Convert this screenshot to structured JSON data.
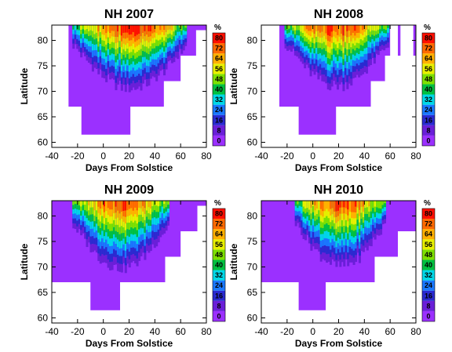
{
  "colorbar": {
    "unit": "%",
    "levels": [
      0,
      8,
      16,
      24,
      32,
      40,
      48,
      56,
      64,
      72,
      80
    ],
    "colors": [
      "#9b30ff",
      "#6a1fd8",
      "#2a2ad0",
      "#1a78ff",
      "#00d8e8",
      "#00c040",
      "#7ee000",
      "#e8f000",
      "#ffb000",
      "#ff6a00",
      "#ff1000"
    ]
  },
  "chart_data": [
    {
      "type": "heatmap",
      "title": "NH 2007",
      "xlabel": "Days From Solstice",
      "ylabel": "Latitude",
      "xlim": [
        -40,
        80
      ],
      "ylim": [
        59,
        83
      ],
      "xticks": [
        -40,
        -20,
        0,
        20,
        40,
        60,
        80
      ],
      "yticks": [
        60,
        65,
        70,
        75,
        80
      ],
      "coverage_rows": [
        {
          "lat": [
            82,
            83
          ],
          "days": [
            -27,
            80
          ]
        },
        {
          "lat": [
            77,
            82
          ],
          "days": [
            -27,
            72
          ]
        },
        {
          "lat": [
            72,
            77
          ],
          "days": [
            -27,
            60
          ]
        },
        {
          "lat": [
            67,
            72
          ],
          "days": [
            -27,
            47
          ]
        },
        {
          "lat": [
            61.5,
            67
          ],
          "days": [
            -17,
            21
          ]
        }
      ],
      "intensity_zone": {
        "days": [
          -24,
          64
        ],
        "lat_top": 83,
        "lat_center_min": 69,
        "peak_percent": 80
      }
    },
    {
      "type": "heatmap",
      "title": "NH 2008",
      "xlabel": "Days From Solstice",
      "ylabel": "Latitude",
      "xlim": [
        -40,
        80
      ],
      "ylim": [
        59,
        83
      ],
      "xticks": [
        -40,
        -20,
        0,
        20,
        40,
        60,
        80
      ],
      "yticks": [
        60,
        65,
        70,
        75,
        80
      ],
      "coverage_rows": [
        {
          "lat": [
            82,
            83
          ],
          "days": [
            -26,
            60
          ]
        },
        {
          "lat": [
            77,
            82
          ],
          "days": [
            -26,
            60
          ]
        },
        {
          "lat": [
            72,
            77
          ],
          "days": [
            -26,
            56
          ]
        },
        {
          "lat": [
            67,
            72
          ],
          "days": [
            -26,
            45
          ]
        },
        {
          "lat": [
            61.5,
            67
          ],
          "days": [
            -11,
            18
          ]
        }
      ],
      "extra_strips": [
        {
          "days": [
            66,
            68
          ],
          "lat": [
            77,
            83
          ]
        },
        {
          "days": [
            78,
            80
          ],
          "lat": [
            77,
            83
          ]
        }
      ],
      "intensity_zone": {
        "days": [
          -22,
          58
        ],
        "lat_top": 83,
        "lat_center_min": 69.5,
        "peak_percent": 80
      }
    },
    {
      "type": "heatmap",
      "title": "NH 2009",
      "xlabel": "Days From Solstice",
      "ylabel": "Latitude",
      "xlim": [
        -40,
        80
      ],
      "ylim": [
        59,
        83
      ],
      "xticks": [
        -40,
        -20,
        0,
        20,
        40,
        60,
        80
      ],
      "yticks": [
        60,
        65,
        70,
        75,
        80
      ],
      "coverage_rows": [
        {
          "lat": [
            82,
            83
          ],
          "days": [
            -40,
            80
          ]
        },
        {
          "lat": [
            77,
            82
          ],
          "days": [
            -40,
            73
          ]
        },
        {
          "lat": [
            72,
            77
          ],
          "days": [
            -40,
            60
          ]
        },
        {
          "lat": [
            67,
            72
          ],
          "days": [
            -40,
            48
          ]
        },
        {
          "lat": [
            61.5,
            67
          ],
          "days": [
            -10,
            13
          ]
        }
      ],
      "intensity_zone": {
        "days": [
          -24,
          50
        ],
        "lat_top": 83,
        "lat_center_min": 68,
        "peak_percent": 80
      }
    },
    {
      "type": "heatmap",
      "title": "NH 2010",
      "xlabel": "Days From Solstice",
      "ylabel": "Latitude",
      "xlim": [
        -40,
        80
      ],
      "ylim": [
        59,
        83
      ],
      "xticks": [
        -40,
        -20,
        0,
        20,
        40,
        60,
        80
      ],
      "yticks": [
        60,
        65,
        70,
        75,
        80
      ],
      "coverage_rows": [
        {
          "lat": [
            82,
            83
          ],
          "days": [
            -40,
            80
          ]
        },
        {
          "lat": [
            77,
            82
          ],
          "days": [
            -40,
            80
          ]
        },
        {
          "lat": [
            72,
            77
          ],
          "days": [
            -40,
            66
          ]
        },
        {
          "lat": [
            67,
            72
          ],
          "days": [
            -40,
            48
          ]
        },
        {
          "lat": [
            61.5,
            67
          ],
          "days": [
            -11,
            10
          ]
        }
      ],
      "intensity_zone": {
        "days": [
          -14,
          56
        ],
        "lat_top": 83,
        "lat_center_min": 68.5,
        "peak_percent": 80
      }
    }
  ]
}
